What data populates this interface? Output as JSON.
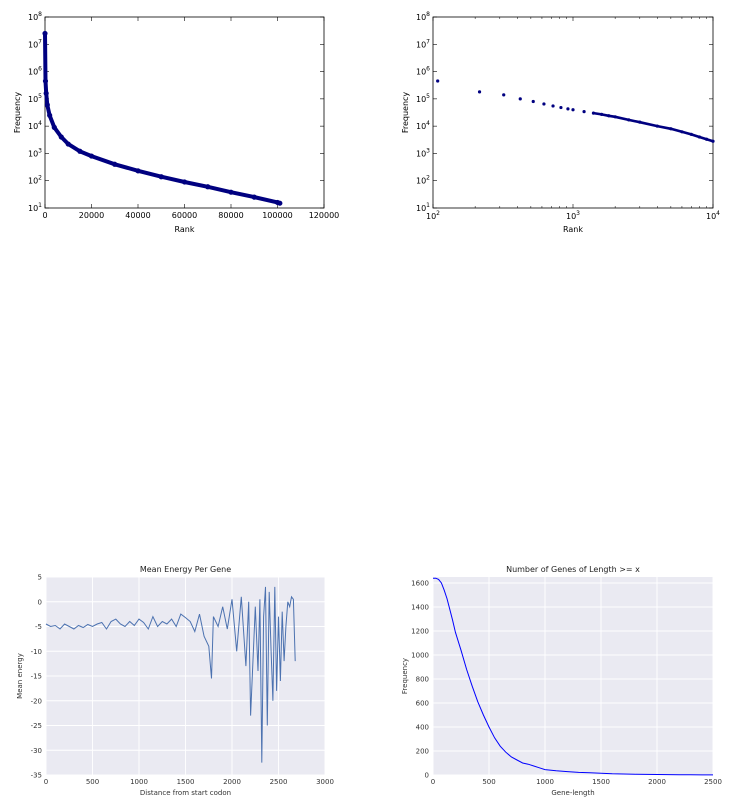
{
  "chart_data": [
    {
      "type": "scatter",
      "xlabel": "Rank",
      "ylabel": "Frequency",
      "xlim": [
        0,
        120000
      ],
      "ylim": [
        10,
        100000000
      ],
      "yscale": "log",
      "x_ticks": [
        "0",
        "20000",
        "40000",
        "60000",
        "80000",
        "100000",
        "120000"
      ],
      "y_ticks": [
        "10^1",
        "10^2",
        "10^3",
        "10^4",
        "10^5",
        "10^6",
        "10^7",
        "10^8"
      ],
      "grid": false,
      "marker_color": "#000080",
      "points": [
        {
          "x": 1,
          "y": 25000000
        },
        {
          "x": 200,
          "y": 450000
        },
        {
          "x": 500,
          "y": 160000
        },
        {
          "x": 1000,
          "y": 60000
        },
        {
          "x": 2000,
          "y": 25000
        },
        {
          "x": 4000,
          "y": 9000
        },
        {
          "x": 7000,
          "y": 4000
        },
        {
          "x": 10000,
          "y": 2200
        },
        {
          "x": 15000,
          "y": 1200
        },
        {
          "x": 20000,
          "y": 800
        },
        {
          "x": 30000,
          "y": 400
        },
        {
          "x": 40000,
          "y": 230
        },
        {
          "x": 50000,
          "y": 140
        },
        {
          "x": 60000,
          "y": 90
        },
        {
          "x": 70000,
          "y": 60
        },
        {
          "x": 80000,
          "y": 38
        },
        {
          "x": 90000,
          "y": 25
        },
        {
          "x": 100000,
          "y": 16
        },
        {
          "x": 101000,
          "y": 15
        }
      ]
    },
    {
      "type": "scatter",
      "xlabel": "Rank",
      "ylabel": "Frequency",
      "xscale": "log",
      "yscale": "log",
      "xlim": [
        100,
        10000
      ],
      "ylim": [
        10,
        100000000
      ],
      "x_ticks": [
        "10^2",
        "10^3",
        "10^4"
      ],
      "y_ticks": [
        "10^1",
        "10^2",
        "10^3",
        "10^4",
        "10^5",
        "10^6",
        "10^7",
        "10^8"
      ],
      "grid": false,
      "marker_color": "#000080",
      "points": [
        {
          "x": 108,
          "y": 450000
        },
        {
          "x": 215,
          "y": 180000
        },
        {
          "x": 320,
          "y": 140000
        },
        {
          "x": 420,
          "y": 100000
        },
        {
          "x": 520,
          "y": 80000
        },
        {
          "x": 620,
          "y": 65000
        },
        {
          "x": 720,
          "y": 55000
        },
        {
          "x": 820,
          "y": 48000
        },
        {
          "x": 920,
          "y": 43000
        },
        {
          "x": 1000,
          "y": 40000
        },
        {
          "x": 1200,
          "y": 34000
        },
        {
          "x": 1400,
          "y": 30000
        },
        {
          "x": 1600,
          "y": 27000
        },
        {
          "x": 1800,
          "y": 24000
        },
        {
          "x": 2000,
          "y": 22000
        },
        {
          "x": 2500,
          "y": 17000
        },
        {
          "x": 3000,
          "y": 14000
        },
        {
          "x": 4000,
          "y": 10000
        },
        {
          "x": 5000,
          "y": 8000
        },
        {
          "x": 6000,
          "y": 6200
        },
        {
          "x": 7000,
          "y": 5000
        },
        {
          "x": 8000,
          "y": 4000
        },
        {
          "x": 9000,
          "y": 3300
        },
        {
          "x": 10000,
          "y": 2800
        }
      ]
    },
    {
      "type": "line",
      "title": "Mean Energy Per Gene",
      "xlabel": "Distance from start codon",
      "ylabel": "Mean energy",
      "xlim": [
        0,
        3000
      ],
      "ylim": [
        -35,
        5
      ],
      "x_ticks": [
        "0",
        "500",
        "1000",
        "1500",
        "2000",
        "2500",
        "3000"
      ],
      "y_ticks": [
        "-35",
        "-30",
        "-25",
        "-20",
        "-15",
        "-10",
        "-5",
        "0",
        "5"
      ],
      "grid": true,
      "line_color": "#4c72b0",
      "background": "#eaeaf2",
      "x": [
        0,
        50,
        100,
        150,
        200,
        250,
        300,
        350,
        400,
        450,
        500,
        550,
        600,
        650,
        700,
        750,
        800,
        850,
        900,
        950,
        1000,
        1050,
        1100,
        1150,
        1200,
        1250,
        1300,
        1350,
        1400,
        1450,
        1500,
        1550,
        1600,
        1650,
        1700,
        1750,
        1780,
        1800,
        1850,
        1900,
        1950,
        2000,
        2050,
        2100,
        2150,
        2180,
        2200,
        2250,
        2280,
        2300,
        2320,
        2340,
        2360,
        2380,
        2400,
        2420,
        2440,
        2460,
        2480,
        2500,
        2520,
        2540,
        2560,
        2580,
        2600,
        2620,
        2640,
        2660,
        2680
      ],
      "y": [
        -4.5,
        -5,
        -4.8,
        -5.5,
        -4.5,
        -5,
        -5.5,
        -4.8,
        -5.2,
        -4.6,
        -5,
        -4.5,
        -4.2,
        -5.5,
        -4,
        -3.5,
        -4.5,
        -5,
        -4,
        -4.8,
        -3.5,
        -4.2,
        -5.5,
        -3,
        -5,
        -4,
        -4.5,
        -3.5,
        -5,
        -2.5,
        -3.2,
        -4,
        -6,
        -2.5,
        -7,
        -9,
        -15.5,
        -3,
        -5,
        -1,
        -5.5,
        0.5,
        -10,
        1,
        -13,
        0,
        -23,
        -1,
        -14,
        0.5,
        -32.5,
        -3,
        3,
        -25,
        2,
        -10,
        -20,
        3,
        -18,
        -3,
        -16,
        -2,
        -12,
        -5,
        0,
        -1,
        1,
        0.5,
        -12
      ]
    },
    {
      "type": "line",
      "title": "Number of Genes of Length >= x",
      "xlabel": "Gene-length",
      "ylabel": "Frequency",
      "xlim": [
        0,
        2500
      ],
      "ylim": [
        0,
        1650
      ],
      "x_ticks": [
        "0",
        "500",
        "1000",
        "1500",
        "2000",
        "2500"
      ],
      "y_ticks": [
        "0",
        "200",
        "400",
        "600",
        "800",
        "1000",
        "1200",
        "1400",
        "1600"
      ],
      "grid": true,
      "line_color": "#0000ff",
      "background": "#eaeaf2",
      "x": [
        0,
        25,
        50,
        75,
        100,
        125,
        150,
        175,
        200,
        250,
        300,
        350,
        400,
        450,
        500,
        550,
        600,
        650,
        700,
        750,
        800,
        850,
        900,
        950,
        1000,
        1100,
        1200,
        1300,
        1400,
        1500,
        1600,
        1700,
        1800,
        1900,
        2000,
        2100,
        2200,
        2300,
        2400,
        2500
      ],
      "y": [
        1640,
        1640,
        1630,
        1600,
        1540,
        1470,
        1380,
        1290,
        1190,
        1040,
        880,
        740,
        610,
        500,
        400,
        310,
        240,
        190,
        150,
        125,
        100,
        90,
        75,
        60,
        45,
        35,
        28,
        22,
        18,
        14,
        10,
        8,
        6,
        5,
        4,
        3,
        2,
        2,
        1,
        1
      ]
    }
  ]
}
